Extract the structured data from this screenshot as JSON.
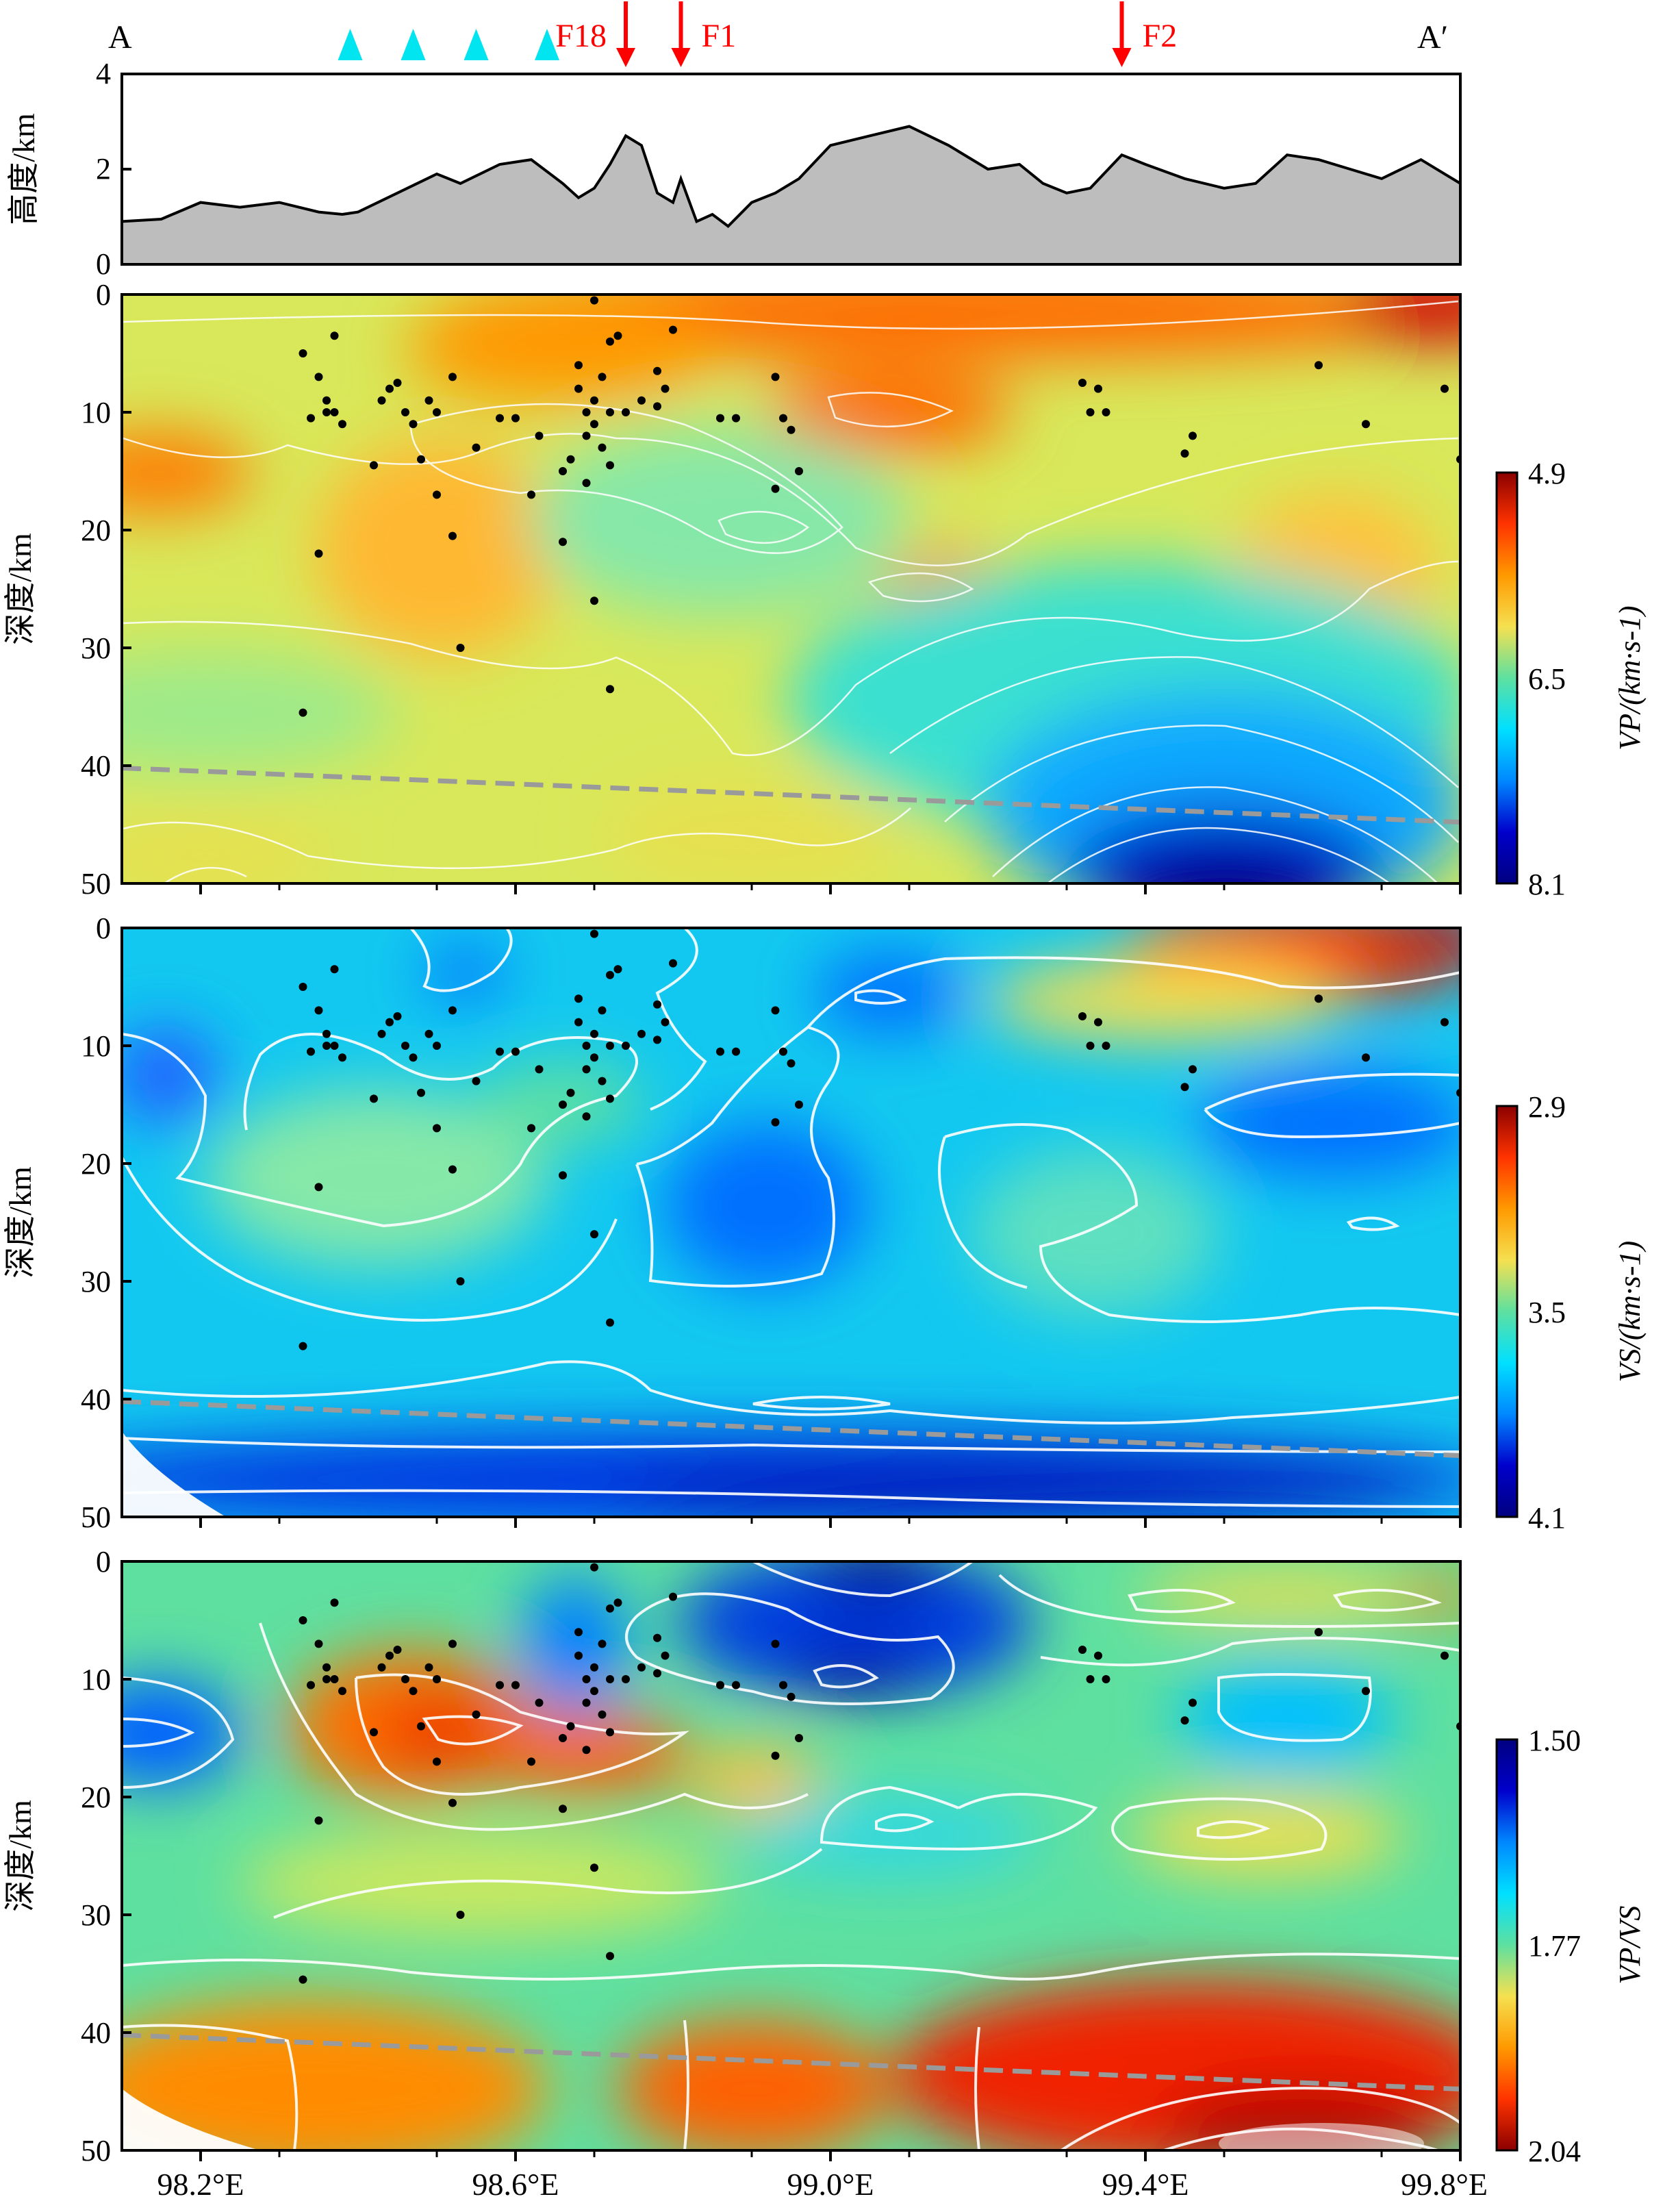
{
  "profile": {
    "start_label": "A",
    "end_label": "A′",
    "ylabel": "高度/km",
    "yticks": [
      "0",
      "2",
      "4"
    ],
    "ylim": [
      0,
      4
    ],
    "fault_labels": [
      "F18",
      "F1",
      "F2"
    ],
    "fault_lon": [
      98.74,
      98.81,
      99.37
    ],
    "station_lon": [
      98.39,
      98.47,
      98.55,
      98.64
    ],
    "elevation": [
      [
        98.1,
        0.9
      ],
      [
        98.15,
        0.95
      ],
      [
        98.2,
        1.3
      ],
      [
        98.25,
        1.2
      ],
      [
        98.3,
        1.3
      ],
      [
        98.35,
        1.1
      ],
      [
        98.38,
        1.05
      ],
      [
        98.4,
        1.1
      ],
      [
        98.45,
        1.5
      ],
      [
        98.5,
        1.9
      ],
      [
        98.53,
        1.7
      ],
      [
        98.58,
        2.1
      ],
      [
        98.62,
        2.2
      ],
      [
        98.66,
        1.7
      ],
      [
        98.68,
        1.4
      ],
      [
        98.7,
        1.6
      ],
      [
        98.72,
        2.1
      ],
      [
        98.74,
        2.7
      ],
      [
        98.76,
        2.5
      ],
      [
        98.78,
        1.5
      ],
      [
        98.8,
        1.3
      ],
      [
        98.81,
        1.8
      ],
      [
        98.83,
        0.9
      ],
      [
        98.85,
        1.05
      ],
      [
        98.87,
        0.8
      ],
      [
        98.9,
        1.3
      ],
      [
        98.93,
        1.5
      ],
      [
        98.96,
        1.8
      ],
      [
        99.0,
        2.5
      ],
      [
        99.05,
        2.7
      ],
      [
        99.1,
        2.9
      ],
      [
        99.15,
        2.5
      ],
      [
        99.2,
        2.0
      ],
      [
        99.24,
        2.1
      ],
      [
        99.27,
        1.7
      ],
      [
        99.3,
        1.5
      ],
      [
        99.33,
        1.6
      ],
      [
        99.37,
        2.3
      ],
      [
        99.4,
        2.1
      ],
      [
        99.45,
        1.8
      ],
      [
        99.5,
        1.6
      ],
      [
        99.54,
        1.7
      ],
      [
        99.58,
        2.3
      ],
      [
        99.62,
        2.2
      ],
      [
        99.66,
        2.0
      ],
      [
        99.7,
        1.8
      ],
      [
        99.75,
        2.2
      ],
      [
        99.8,
        1.7
      ]
    ]
  },
  "panels": [
    {
      "ylabel": "深度/km",
      "colorbar_label": "VP/(km·s-1)",
      "colorbar_ticks": [
        "4.9",
        "6.5",
        "8.1"
      ],
      "colors": [
        "#8b0000",
        "#ff3300",
        "#ff9900",
        "#f5e050",
        "#5ee0a0",
        "#00e0ff",
        "#0088ff",
        "#0000cc",
        "#000080"
      ]
    },
    {
      "ylabel": "深度/km",
      "colorbar_label": "VS/(km·s-1)",
      "colorbar_ticks": [
        "2.9",
        "3.5",
        "4.1"
      ],
      "colors": [
        "#8b0000",
        "#ff3300",
        "#ff9900",
        "#f5e050",
        "#5ee0a0",
        "#00e0ff",
        "#0088ff",
        "#0000cc",
        "#000080"
      ]
    },
    {
      "ylabel": "深度/km",
      "colorbar_label": "VP/VS",
      "colorbar_ticks": [
        "1.50",
        "1.77",
        "2.04"
      ],
      "colors": [
        "#000080",
        "#0000cc",
        "#0088ff",
        "#00e0ff",
        "#5ee0a0",
        "#f5e050",
        "#ff9900",
        "#ff3300",
        "#8b0000"
      ]
    }
  ],
  "chart_data": {
    "type": "scatter",
    "xlabel": "",
    "ylabel": "深度/km",
    "xlim": [
      98.1,
      99.8
    ],
    "ylim": [
      0,
      50
    ],
    "yticks": [
      0,
      10,
      20,
      30,
      40,
      50
    ],
    "x_tick_labels": [
      "98.2°E",
      "98.6°E",
      "99.0°E",
      "99.4°E",
      "99.8°E"
    ],
    "x_tick_values": [
      98.2,
      98.6,
      99.0,
      99.4,
      99.8
    ],
    "moho_line": [
      [
        98.1,
        40.2
      ],
      [
        99.8,
        44.8
      ]
    ],
    "earthquakes": [
      [
        98.33,
        5
      ],
      [
        98.35,
        7
      ],
      [
        98.36,
        9
      ],
      [
        98.37,
        10
      ],
      [
        98.38,
        11
      ],
      [
        98.36,
        10
      ],
      [
        98.37,
        3.5
      ],
      [
        98.35,
        22
      ],
      [
        98.33,
        35.5
      ],
      [
        98.34,
        10.5
      ],
      [
        98.42,
        14.5
      ],
      [
        98.43,
        9
      ],
      [
        98.44,
        8
      ],
      [
        98.45,
        7.5
      ],
      [
        98.46,
        10
      ],
      [
        98.47,
        11
      ],
      [
        98.48,
        14
      ],
      [
        98.49,
        9
      ],
      [
        98.5,
        10
      ],
      [
        98.52,
        7
      ],
      [
        98.5,
        17
      ],
      [
        98.52,
        20.5
      ],
      [
        98.53,
        30
      ],
      [
        98.55,
        13
      ],
      [
        98.58,
        10.5
      ],
      [
        98.6,
        10.5
      ],
      [
        98.62,
        17
      ],
      [
        98.63,
        12
      ],
      [
        98.66,
        15
      ],
      [
        98.66,
        21
      ],
      [
        98.68,
        6
      ],
      [
        98.68,
        8
      ],
      [
        98.69,
        10
      ],
      [
        98.69,
        12
      ],
      [
        98.7,
        9
      ],
      [
        98.7,
        11
      ],
      [
        98.71,
        7
      ],
      [
        98.71,
        13
      ],
      [
        98.72,
        4
      ],
      [
        98.72,
        10
      ],
      [
        98.73,
        3.5
      ],
      [
        98.7,
        26
      ],
      [
        98.72,
        33.5
      ],
      [
        98.67,
        14
      ],
      [
        98.69,
        16
      ],
      [
        98.7,
        0.5
      ],
      [
        98.72,
        14.5
      ],
      [
        98.74,
        10
      ],
      [
        98.76,
        9
      ],
      [
        98.78,
        6.5
      ],
      [
        98.79,
        8
      ],
      [
        98.8,
        3
      ],
      [
        98.78,
        9.5
      ],
      [
        98.86,
        10.5
      ],
      [
        98.88,
        10.5
      ],
      [
        98.93,
        16.5
      ],
      [
        98.93,
        7
      ],
      [
        98.94,
        10.5
      ],
      [
        98.95,
        11.5
      ],
      [
        98.96,
        15
      ],
      [
        99.32,
        7.5
      ],
      [
        99.34,
        8
      ],
      [
        99.33,
        10
      ],
      [
        99.35,
        10
      ],
      [
        99.45,
        13.5
      ],
      [
        99.46,
        12
      ],
      [
        99.62,
        6
      ],
      [
        99.68,
        11
      ],
      [
        99.78,
        8
      ],
      [
        99.8,
        14
      ]
    ]
  }
}
